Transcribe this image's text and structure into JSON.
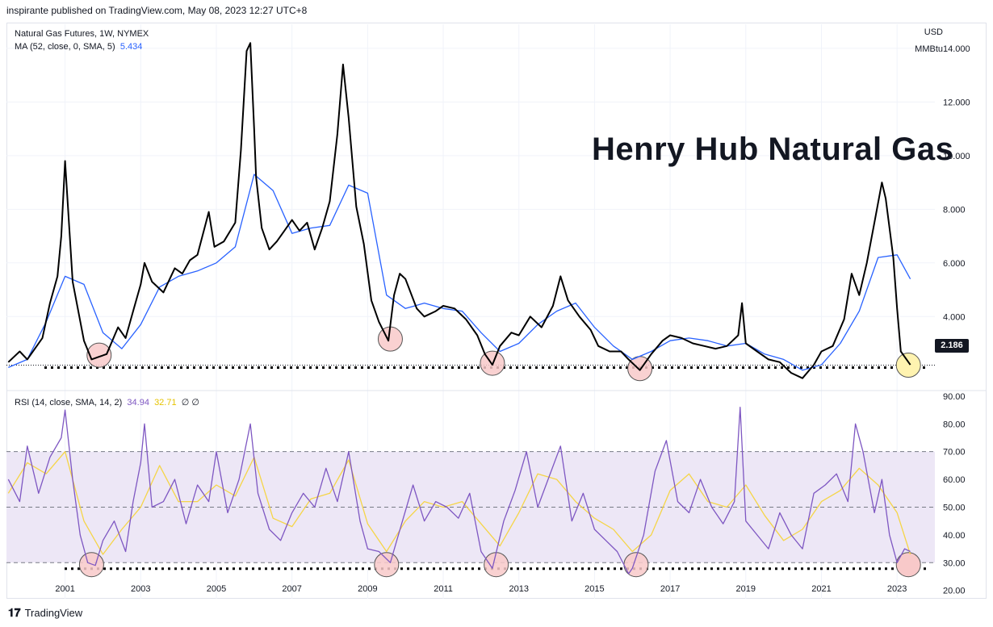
{
  "header": {
    "publisher_text": "inspirante published on TradingView.com, May 08, 2023 12:27 UTC+8"
  },
  "legend": {
    "symbol": "Natural Gas Futures, 1W, NYMEX",
    "ma_label": "MA (52, close, 0, SMA, 5)",
    "ma_value": "5.434",
    "rsi_label": "RSI (14, close, SMA, 14, 2)",
    "rsi_value": "34.94",
    "rsi_ma_value": "32.71",
    "rsi_extra": "∅ ∅"
  },
  "annotation_title": "Henry Hub Natural Gas",
  "units": {
    "currency": "USD",
    "unit": "MMBtu"
  },
  "last_price": "2.186",
  "footer": {
    "brand": "TradingView"
  },
  "colors": {
    "price": "#000000",
    "ma": "#2962ff",
    "rsi": "#7e57c2",
    "rsi_ma": "#f5d547",
    "band": "#ede7f6",
    "low_circle": "#f8c9c9",
    "current_circle": "#fff3b0"
  },
  "chart_data": [
    {
      "type": "line",
      "title": "Natural Gas Futures, 1W, NYMEX",
      "ylim": [
        1.3,
        14.9
      ],
      "y_ticks": [
        "14.000",
        "12.000",
        "10.000",
        "8.000",
        "6.000",
        "4.000"
      ],
      "y_tick_values": [
        14,
        12,
        10,
        8,
        6,
        4
      ],
      "support_level": 2.186,
      "series": [
        {
          "name": "Natural Gas Futures",
          "x": [
            1999.5,
            1999.8,
            2000.0,
            2000.4,
            2000.6,
            2000.8,
            2000.9,
            2001.0,
            2001.2,
            2001.5,
            2001.7,
            2001.9,
            2002.1,
            2002.4,
            2002.6,
            2002.8,
            2003.0,
            2003.1,
            2003.3,
            2003.6,
            2003.9,
            2004.1,
            2004.3,
            2004.5,
            2004.8,
            2004.95,
            2005.2,
            2005.5,
            2005.65,
            2005.8,
            2005.9,
            2006.0,
            2006.05,
            2006.2,
            2006.4,
            2006.6,
            2006.8,
            2007.0,
            2007.2,
            2007.4,
            2007.6,
            2007.8,
            2008.0,
            2008.2,
            2008.35,
            2008.5,
            2008.7,
            2008.9,
            2009.1,
            2009.3,
            2009.55,
            2009.7,
            2009.85,
            2010.0,
            2010.3,
            2010.5,
            2010.8,
            2011.0,
            2011.3,
            2011.6,
            2011.9,
            2012.1,
            2012.3,
            2012.5,
            2012.8,
            2013.0,
            2013.3,
            2013.6,
            2013.9,
            2014.1,
            2014.3,
            2014.6,
            2014.9,
            2015.1,
            2015.4,
            2015.7,
            2015.9,
            2016.2,
            2016.5,
            2016.8,
            2017.0,
            2017.3,
            2017.6,
            2017.9,
            2018.2,
            2018.5,
            2018.8,
            2018.9,
            2019.0,
            2019.3,
            2019.6,
            2019.9,
            2020.2,
            2020.5,
            2020.8,
            2021.0,
            2021.3,
            2021.6,
            2021.8,
            2022.0,
            2022.2,
            2022.4,
            2022.6,
            2022.7,
            2022.9,
            2023.0,
            2023.1,
            2023.2,
            2023.35
          ],
          "y": [
            2.3,
            2.7,
            2.4,
            3.2,
            4.5,
            5.5,
            7.0,
            9.8,
            5.3,
            3.1,
            2.4,
            2.5,
            2.6,
            3.6,
            3.2,
            4.2,
            5.2,
            6.0,
            5.3,
            4.9,
            5.8,
            5.6,
            6.1,
            6.3,
            7.9,
            6.6,
            6.8,
            7.5,
            10.2,
            13.9,
            14.2,
            11.0,
            9.2,
            7.3,
            6.5,
            6.8,
            7.2,
            7.6,
            7.2,
            7.5,
            6.5,
            7.3,
            8.3,
            10.8,
            13.4,
            11.4,
            8.1,
            6.7,
            4.6,
            3.8,
            3.1,
            4.8,
            5.6,
            5.4,
            4.3,
            4.0,
            4.2,
            4.4,
            4.3,
            3.9,
            3.3,
            2.6,
            2.2,
            2.9,
            3.4,
            3.3,
            4.0,
            3.6,
            4.4,
            5.5,
            4.6,
            4.0,
            3.5,
            2.9,
            2.7,
            2.7,
            2.4,
            2.0,
            2.6,
            3.1,
            3.3,
            3.2,
            3.0,
            2.9,
            2.8,
            2.9,
            3.3,
            4.5,
            3.0,
            2.7,
            2.4,
            2.3,
            1.9,
            1.7,
            2.2,
            2.7,
            2.9,
            3.9,
            5.6,
            4.8,
            6.0,
            7.5,
            9.0,
            8.4,
            6.2,
            4.3,
            2.7,
            2.5,
            2.2
          ]
        },
        {
          "name": "MA (52, close, 0, SMA, 5)",
          "x": [
            1999.5,
            2000.0,
            2000.5,
            2001.0,
            2001.5,
            2002.0,
            2002.5,
            2003.0,
            2003.5,
            2004.0,
            2004.5,
            2005.0,
            2005.5,
            2006.0,
            2006.5,
            2007.0,
            2007.5,
            2008.0,
            2008.5,
            2009.0,
            2009.5,
            2010.0,
            2010.5,
            2011.0,
            2011.5,
            2012.0,
            2012.5,
            2013.0,
            2013.5,
            2014.0,
            2014.5,
            2015.0,
            2015.5,
            2016.0,
            2016.5,
            2017.0,
            2017.5,
            2018.0,
            2018.5,
            2019.0,
            2019.5,
            2020.0,
            2020.5,
            2021.0,
            2021.5,
            2022.0,
            2022.5,
            2023.0,
            2023.35
          ],
          "y": [
            2.1,
            2.4,
            3.8,
            5.5,
            5.2,
            3.4,
            2.8,
            3.7,
            5.1,
            5.5,
            5.7,
            6.0,
            6.6,
            9.3,
            8.7,
            7.1,
            7.3,
            7.4,
            8.9,
            8.6,
            4.8,
            4.3,
            4.5,
            4.3,
            4.2,
            3.4,
            2.7,
            3.0,
            3.7,
            4.2,
            4.5,
            3.6,
            2.9,
            2.4,
            2.7,
            3.1,
            3.2,
            3.1,
            2.9,
            3.0,
            2.6,
            2.4,
            2.0,
            2.2,
            3.0,
            4.2,
            6.2,
            6.3,
            5.4
          ]
        }
      ]
    },
    {
      "type": "line",
      "title": "RSI (14, close, SMA, 14, 2)",
      "ylim": [
        17,
        92
      ],
      "y_ticks": [
        "90.00",
        "80.00",
        "70.00",
        "60.00",
        "50.00",
        "40.00",
        "30.00",
        "20.00"
      ],
      "y_tick_values": [
        90,
        80,
        70,
        60,
        50,
        40,
        30,
        20
      ],
      "band": [
        30,
        70
      ],
      "midline": 50,
      "support_level": 29,
      "series": [
        {
          "name": "RSI",
          "x": [
            1999.5,
            1999.8,
            2000.0,
            2000.3,
            2000.6,
            2000.9,
            2001.0,
            2001.2,
            2001.4,
            2001.6,
            2001.8,
            2002.0,
            2002.3,
            2002.6,
            2002.8,
            2003.0,
            2003.1,
            2003.3,
            2003.6,
            2003.9,
            2004.2,
            2004.5,
            2004.8,
            2005.0,
            2005.3,
            2005.6,
            2005.9,
            2006.1,
            2006.4,
            2006.7,
            2007.0,
            2007.3,
            2007.6,
            2007.9,
            2008.2,
            2008.5,
            2008.8,
            2009.0,
            2009.3,
            2009.6,
            2009.9,
            2010.2,
            2010.5,
            2010.8,
            2011.1,
            2011.4,
            2011.7,
            2012.0,
            2012.3,
            2012.6,
            2012.9,
            2013.2,
            2013.5,
            2013.8,
            2014.1,
            2014.4,
            2014.7,
            2015.0,
            2015.3,
            2015.6,
            2015.9,
            2016.0,
            2016.3,
            2016.6,
            2016.9,
            2017.2,
            2017.5,
            2017.8,
            2018.1,
            2018.4,
            2018.7,
            2018.85,
            2019.0,
            2019.3,
            2019.6,
            2019.9,
            2020.2,
            2020.5,
            2020.8,
            2021.1,
            2021.4,
            2021.7,
            2021.9,
            2022.1,
            2022.4,
            2022.6,
            2022.8,
            2023.0,
            2023.2,
            2023.35
          ],
          "y": [
            60,
            52,
            72,
            55,
            68,
            75,
            85,
            60,
            40,
            30,
            29,
            38,
            45,
            34,
            52,
            66,
            80,
            50,
            52,
            60,
            44,
            58,
            52,
            70,
            48,
            60,
            80,
            55,
            42,
            38,
            48,
            55,
            50,
            64,
            52,
            70,
            45,
            35,
            34,
            30,
            44,
            58,
            45,
            52,
            50,
            46,
            55,
            34,
            28,
            45,
            56,
            70,
            50,
            61,
            72,
            45,
            55,
            42,
            38,
            34,
            26,
            28,
            40,
            63,
            74,
            52,
            48,
            60,
            50,
            44,
            52,
            86,
            45,
            40,
            35,
            48,
            40,
            35,
            55,
            58,
            62,
            52,
            80,
            70,
            48,
            60,
            40,
            30,
            35,
            34
          ]
        },
        {
          "name": "RSI MA",
          "x": [
            1999.5,
            2000.0,
            2000.5,
            2001.0,
            2001.5,
            2002.0,
            2002.5,
            2003.0,
            2003.5,
            2004.0,
            2004.5,
            2005.0,
            2005.5,
            2006.0,
            2006.5,
            2007.0,
            2007.5,
            2008.0,
            2008.5,
            2009.0,
            2009.5,
            2010.0,
            2010.5,
            2011.0,
            2011.5,
            2012.0,
            2012.5,
            2013.0,
            2013.5,
            2014.0,
            2014.5,
            2015.0,
            2015.5,
            2016.0,
            2016.5,
            2017.0,
            2017.5,
            2018.0,
            2018.5,
            2019.0,
            2019.5,
            2020.0,
            2020.5,
            2021.0,
            2021.5,
            2022.0,
            2022.5,
            2023.0,
            2023.35
          ],
          "y": [
            55,
            66,
            62,
            70,
            45,
            33,
            42,
            50,
            65,
            52,
            52,
            58,
            54,
            68,
            46,
            43,
            53,
            55,
            67,
            44,
            34,
            45,
            52,
            50,
            52,
            44,
            36,
            48,
            62,
            60,
            52,
            46,
            42,
            34,
            40,
            56,
            62,
            52,
            50,
            58,
            47,
            38,
            42,
            52,
            56,
            64,
            58,
            48,
            33
          ]
        }
      ]
    }
  ],
  "x_axis": {
    "labels": [
      "2001",
      "2003",
      "2005",
      "2007",
      "2009",
      "2011",
      "2013",
      "2015",
      "2017",
      "2019",
      "2021",
      "2023"
    ],
    "values": [
      2001,
      2003,
      2005,
      2007,
      2009,
      2011,
      2013,
      2015,
      2017,
      2019,
      2021,
      2023
    ]
  },
  "markers": {
    "price_lows": [
      2001.9,
      2009.6,
      2012.3,
      2016.2
    ],
    "price_current": 2023.3,
    "rsi_lows": [
      2001.7,
      2009.5,
      2012.4,
      2016.1
    ],
    "rsi_current": 2023.3
  }
}
